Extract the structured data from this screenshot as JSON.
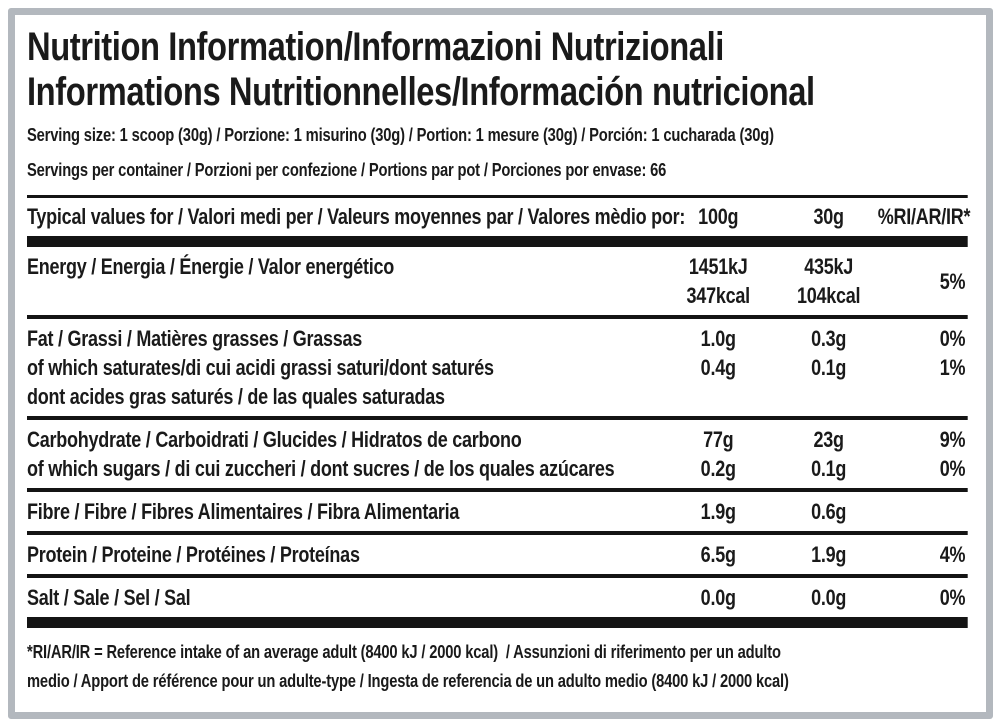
{
  "colors": {
    "frame": "#b3b8be",
    "text": "#1a1a1a",
    "rule": "#141414",
    "background": "#ffffff"
  },
  "title": {
    "line1": "Nutrition Information/Informazioni Nutrizionali",
    "line2": "Informations Nutritionnelles/Información nutricional"
  },
  "serving": {
    "size_line": "Serving size: 1 scoop (30g) / Porzione: 1 misurino (30g) / Portion: 1 mesure (30g) / Porción: 1 cucharada (30g)",
    "per_container_line": "Servings per container / Porzioni per confezione / Portions par pot / Porciones por envase: 66"
  },
  "table": {
    "header": {
      "label": "Typical values for / Valori medi per / Valeurs moyennes par / Valores mèdio por:",
      "col_100g": "100g",
      "col_30g": "30g",
      "col_pct": "%RI/AR/IR*"
    },
    "rows": [
      {
        "name": "energy",
        "labels": [
          "Energy / Energia / Énergie / Valor energético"
        ],
        "v100": [
          "1451kJ",
          "347kcal"
        ],
        "v30": [
          "435kJ",
          "104kcal"
        ],
        "pct": [
          "5%"
        ],
        "pct_vcenter": true,
        "sep": "thin"
      },
      {
        "name": "fat",
        "labels": [
          "Fat / Grassi / Matières grasses / Grassas",
          "of which saturates/di cui acidi grassi saturi/dont saturés",
          "dont acides gras saturés / de las quales saturadas"
        ],
        "v100": [
          "1.0g",
          "0.4g"
        ],
        "v30": [
          "0.3g",
          "0.1g"
        ],
        "pct": [
          "0%",
          "1%"
        ],
        "sep": "thin"
      },
      {
        "name": "carbohydrate",
        "labels": [
          "Carbohydrate / Carboidrati / Glucides / Hidratos de carbono",
          "of which sugars / di cui zuccheri / dont sucres / de los quales azúcares"
        ],
        "v100": [
          "77g",
          "0.2g"
        ],
        "v30": [
          "23g",
          "0.1g"
        ],
        "pct": [
          "9%",
          "0%"
        ],
        "sep": "thin"
      },
      {
        "name": "fibre",
        "labels": [
          "Fibre / Fibre / Fibres Alimentaires / Fibra Alimentaria"
        ],
        "v100": [
          "1.9g"
        ],
        "v30": [
          "0.6g"
        ],
        "pct": [],
        "sep": "thin"
      },
      {
        "name": "protein",
        "labels": [
          "Protein / Proteine / Protéines / Proteínas"
        ],
        "v100": [
          "6.5g"
        ],
        "v30": [
          "1.9g"
        ],
        "pct": [
          "4%"
        ],
        "sep": "thin"
      },
      {
        "name": "salt",
        "labels": [
          "Salt / Sale / Sel / Sal"
        ],
        "v100": [
          "0.0g"
        ],
        "v30": [
          "0.0g"
        ],
        "pct": [
          "0%"
        ],
        "sep": "thick"
      }
    ]
  },
  "footnote": {
    "lines": [
      "*RI/AR/IR = Reference intake of an average adult (8400 kJ / 2000 kcal)  / Assunzioni di riferimento per un adulto",
      "medio / Apport de référence pour un adulte-type / Ingesta de referencia de un adulto medio (8400 kJ / 2000 kcal)"
    ]
  }
}
